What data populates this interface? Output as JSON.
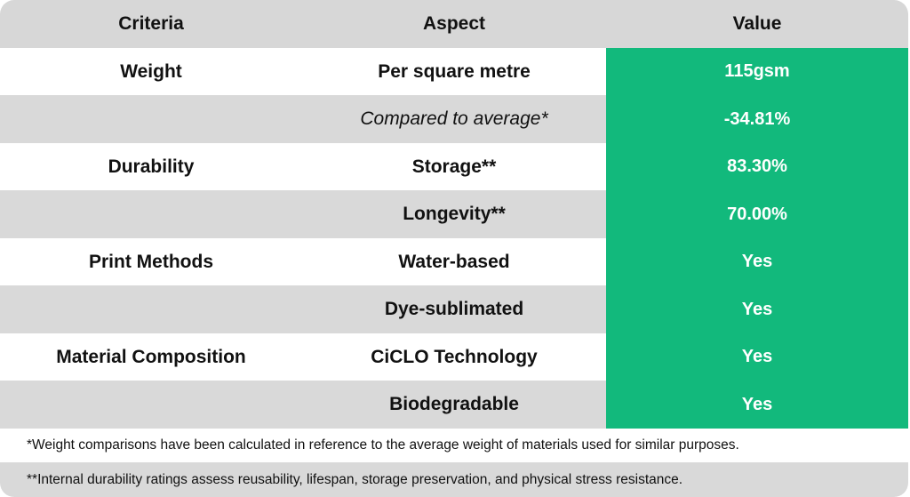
{
  "header": {
    "criteria": "Criteria",
    "aspect": "Aspect",
    "value": "Value"
  },
  "rows": [
    {
      "criteria": "Weight",
      "aspect": "Per square metre",
      "value": "115gsm"
    },
    {
      "criteria": "",
      "aspect": "Compared to average*",
      "value": "-34.81%"
    },
    {
      "criteria": "Durability",
      "aspect": "Storage**",
      "value": "83.30%"
    },
    {
      "criteria": "",
      "aspect": "Longevity**",
      "value": "70.00%"
    },
    {
      "criteria": "Print Methods",
      "aspect": "Water-based",
      "value": "Yes"
    },
    {
      "criteria": "",
      "aspect": "Dye-sublimated",
      "value": "Yes"
    },
    {
      "criteria": "Material Composition",
      "aspect": "CiCLO Technology",
      "value": "Yes"
    },
    {
      "criteria": "",
      "aspect": "Biodegradable",
      "value": "Yes"
    }
  ],
  "footnotes": {
    "note1": "*Weight comparisons have been calculated in reference to the average weight of materials used for similar purposes.",
    "note2": "**Internal durability ratings assess reusability, lifespan, storage preservation, and physical stress resistance."
  },
  "colors": {
    "header_bg": "#d7d7d7",
    "stripe": "#d9d9d9",
    "value_green": "#12b97c"
  }
}
